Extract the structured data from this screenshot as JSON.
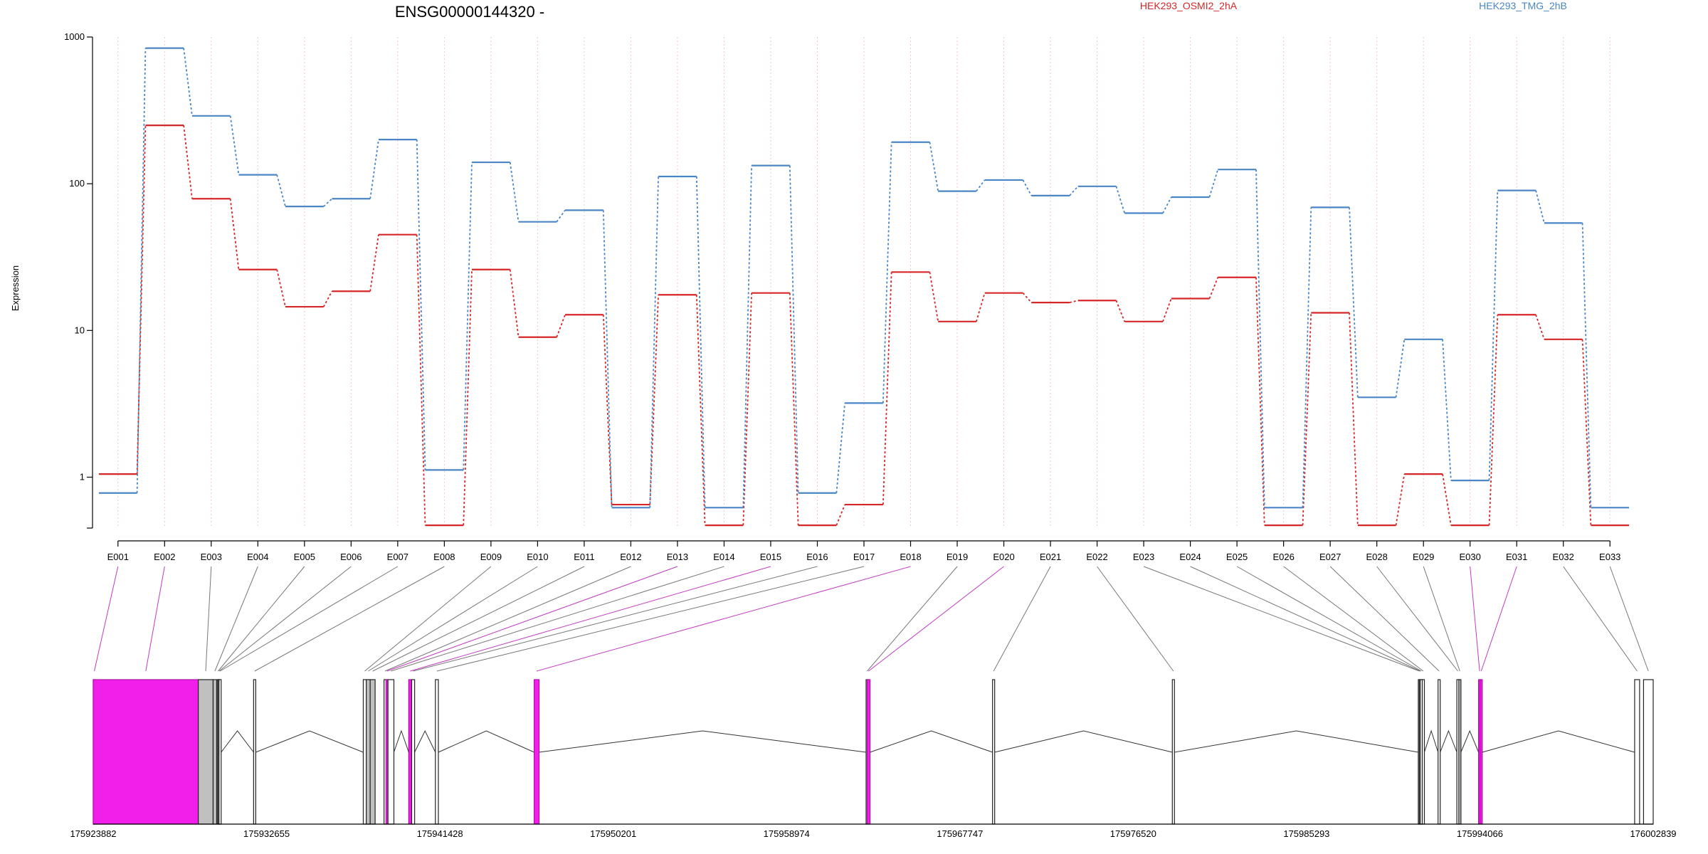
{
  "chart_data": {
    "type": "line",
    "title": "ENSG00000144320 -",
    "ylabel": "Expression",
    "yscale": "log",
    "ylim": [
      0.45,
      1000
    ],
    "yticks": [
      1,
      10,
      100,
      1000
    ],
    "yticklabels": [
      "1",
      "10",
      "100",
      "1000"
    ],
    "grid": "vertical dotted at exon positions",
    "legend_placement": "top",
    "categories": [
      "E001",
      "E002",
      "E003",
      "E004",
      "E005",
      "E006",
      "E007",
      "E008",
      "E009",
      "E010",
      "E011",
      "E012",
      "E013",
      "E014",
      "E015",
      "E016",
      "E017",
      "E018",
      "E019",
      "E020",
      "E021",
      "E022",
      "E023",
      "E024",
      "E025",
      "E026",
      "E027",
      "E028",
      "E029",
      "E030",
      "E031",
      "E032",
      "E033"
    ],
    "series": [
      {
        "name": "HEK293_OSMI2_2hA",
        "color": "#d62728",
        "values": [
          1.05,
          250,
          79,
          26,
          14.5,
          18.5,
          45,
          0.47,
          26,
          9,
          12.8,
          0.65,
          17.5,
          0.47,
          18,
          0.47,
          0.65,
          25,
          11.5,
          18,
          15.5,
          16,
          11.5,
          16.5,
          23,
          0.47,
          13.2,
          0.47,
          1.05,
          0.47,
          12.8,
          8.7,
          0.47
        ]
      },
      {
        "name": "HEK293_TMG_2hB",
        "color": "#4a86c5",
        "values": [
          0.78,
          840,
          290,
          115,
          70,
          79,
          200,
          1.12,
          140,
          55,
          66,
          0.62,
          112,
          0.62,
          133,
          0.78,
          3.2,
          192,
          89,
          106,
          83,
          96,
          63,
          81,
          125,
          0.62,
          69,
          3.5,
          8.7,
          0.95,
          90,
          54,
          0.62
        ]
      }
    ],
    "gene_model": {
      "coordinate_labels": [
        "175923882",
        "175932655",
        "175941428",
        "175950201",
        "175958974",
        "175967747",
        "175976520",
        "175985293",
        "175994066",
        "176002839"
      ],
      "coordinate_range": [
        175923882,
        176002839
      ],
      "highlight_color": "#f21fea",
      "exon_box_color": "#c0c0c0",
      "exons": [
        {
          "id": "E001",
          "start": 175923882,
          "end": 175923882,
          "fill": "magenta"
        },
        {
          "id": "E002",
          "start": 175923882,
          "end": 175929200,
          "fill": "magenta"
        },
        {
          "id": "E003",
          "start": 175929200,
          "end": 175929950,
          "fill": "grey"
        },
        {
          "id": "E004",
          "start": 175929950,
          "end": 175930130,
          "fill": "grey"
        },
        {
          "id": "E005",
          "start": 175930150,
          "end": 175930200,
          "fill": "white"
        },
        {
          "id": "E006",
          "start": 175930200,
          "end": 175930250,
          "fill": "white"
        },
        {
          "id": "E007",
          "start": 175930250,
          "end": 175930300,
          "fill": "white"
        },
        {
          "id": "E008",
          "start": 175932000,
          "end": 175932060,
          "fill": "white"
        },
        {
          "id": "E009",
          "start": 175937550,
          "end": 175937700,
          "fill": "white"
        },
        {
          "id": "E010",
          "start": 175937700,
          "end": 175937900,
          "fill": "grey"
        },
        {
          "id": "E011",
          "start": 175937900,
          "end": 175938150,
          "fill": "grey"
        },
        {
          "id": "E012",
          "start": 175938600,
          "end": 175938700,
          "fill": "white"
        },
        {
          "id": "E013",
          "start": 175938700,
          "end": 175938800,
          "fill": "magenta"
        },
        {
          "id": "E014",
          "start": 175938800,
          "end": 175939100,
          "fill": "white"
        },
        {
          "id": "E015",
          "start": 175939850,
          "end": 175940000,
          "fill": "magenta"
        },
        {
          "id": "E016",
          "start": 175940000,
          "end": 175940150,
          "fill": "white"
        },
        {
          "id": "E017",
          "start": 175941200,
          "end": 175941350,
          "fill": "white"
        },
        {
          "id": "E018",
          "start": 175946200,
          "end": 175946450,
          "fill": "magenta"
        },
        {
          "id": "E019",
          "start": 175963000,
          "end": 175963050,
          "fill": "white"
        },
        {
          "id": "E020",
          "start": 175963050,
          "end": 175963200,
          "fill": "magenta"
        },
        {
          "id": "E021",
          "start": 175969400,
          "end": 175969480,
          "fill": "white"
        },
        {
          "id": "E022",
          "start": 175978500,
          "end": 175978580,
          "fill": "white"
        },
        {
          "id": "E023",
          "start": 175990950,
          "end": 175991000,
          "fill": "white"
        },
        {
          "id": "E024",
          "start": 175991000,
          "end": 175991050,
          "fill": "white"
        },
        {
          "id": "E025",
          "start": 175991050,
          "end": 175991150,
          "fill": "white"
        },
        {
          "id": "E026",
          "start": 175991150,
          "end": 175991200,
          "fill": "white"
        },
        {
          "id": "E027",
          "start": 175991950,
          "end": 175992020,
          "fill": "white"
        },
        {
          "id": "E028",
          "start": 175992900,
          "end": 175993000,
          "fill": "white"
        },
        {
          "id": "E029",
          "start": 175993000,
          "end": 175993100,
          "fill": "grey"
        },
        {
          "id": "E030",
          "start": 175994000,
          "end": 175994080,
          "fill": "magenta"
        },
        {
          "id": "E031",
          "start": 175994080,
          "end": 175994150,
          "fill": "magenta"
        },
        {
          "id": "E032",
          "start": 176001900,
          "end": 176002150,
          "fill": "white"
        },
        {
          "id": "E033",
          "start": 176002350,
          "end": 176002839,
          "fill": "white"
        }
      ]
    }
  }
}
